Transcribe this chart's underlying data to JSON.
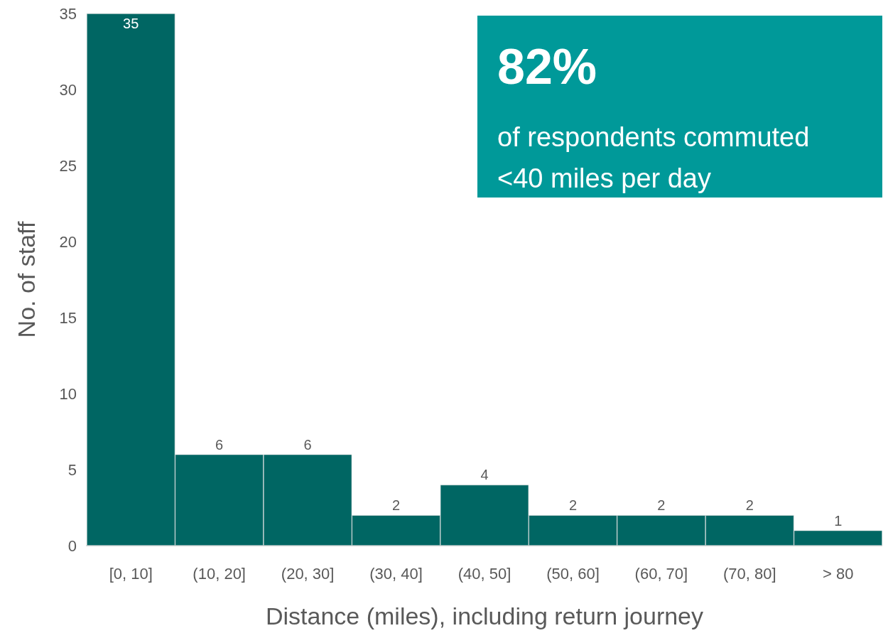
{
  "chart_data": {
    "type": "bar",
    "categories": [
      "[0, 10]",
      "(10, 20]",
      "(20, 30]",
      "(30, 40]",
      "(40, 50]",
      "(50, 60]",
      "(60, 70]",
      "(70, 80]",
      "> 80"
    ],
    "values": [
      35,
      6,
      6,
      2,
      4,
      2,
      2,
      2,
      1
    ],
    "color": "#006663",
    "xlabel": "Distance (miles), including return journey",
    "ylabel": "No. of staff",
    "ylim": [
      0,
      35
    ],
    "yticks": [
      0,
      5,
      10,
      15,
      20,
      25,
      30,
      35
    ],
    "data_labels": true,
    "grid": false,
    "annotations": [
      "82%",
      "of respondents commuted <40 miles per day"
    ]
  }
}
